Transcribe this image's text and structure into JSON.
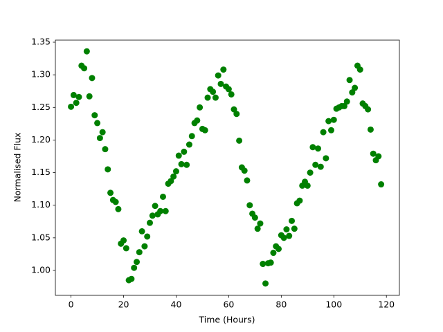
{
  "chart_data": {
    "type": "scatter",
    "xlabel": "Time (Hours)",
    "ylabel": "Normalised Flux",
    "x": [
      0,
      1,
      2,
      3,
      4,
      5,
      6,
      7,
      8,
      9,
      10,
      11,
      12,
      13,
      14,
      15,
      16,
      17,
      18,
      19,
      20,
      21,
      22,
      23,
      24,
      25,
      26,
      27,
      28,
      29,
      30,
      31,
      32,
      33,
      34,
      35,
      36,
      37,
      38,
      39,
      40,
      41,
      42,
      43,
      44,
      45,
      46,
      47,
      48,
      49,
      50,
      51,
      52,
      53,
      54,
      55,
      56,
      57,
      58,
      59,
      60,
      61,
      62,
      63,
      64,
      65,
      66,
      67,
      68,
      69,
      70,
      71,
      72,
      73,
      74,
      75,
      76,
      77,
      78,
      79,
      80,
      81,
      82,
      83,
      84,
      85,
      86,
      87,
      88,
      89,
      90,
      91,
      92,
      93,
      94,
      95,
      96,
      97,
      98,
      99,
      100,
      101,
      102,
      103,
      104,
      105,
      106,
      107,
      108,
      109,
      110,
      111,
      112,
      113,
      114,
      115,
      116,
      117,
      118
    ],
    "series": [
      {
        "color": "#008000",
        "values": [
          1.251,
          1.269,
          1.257,
          1.266,
          1.314,
          1.31,
          1.336,
          1.267,
          1.295,
          1.238,
          1.226,
          1.203,
          1.212,
          1.186,
          1.155,
          1.119,
          1.108,
          1.105,
          1.094,
          1.041,
          1.046,
          1.034,
          0.985,
          0.987,
          1.004,
          1.013,
          1.028,
          1.06,
          1.037,
          1.052,
          1.073,
          1.084,
          1.099,
          1.086,
          1.091,
          1.113,
          1.091,
          1.133,
          1.137,
          1.144,
          1.152,
          1.176,
          1.163,
          1.182,
          1.162,
          1.193,
          1.206,
          1.226,
          1.23,
          1.25,
          1.217,
          1.215,
          1.265,
          1.278,
          1.274,
          1.265,
          1.299,
          1.286,
          1.308,
          1.282,
          1.278,
          1.27,
          1.247,
          1.24,
          1.199,
          1.158,
          1.153,
          1.138,
          1.1,
          1.087,
          1.081,
          1.064,
          1.072,
          1.01,
          0.98,
          1.011,
          1.012,
          1.027,
          1.037,
          1.033,
          1.054,
          1.05,
          1.063,
          1.053,
          1.076,
          1.064,
          1.103,
          1.107,
          1.13,
          1.136,
          1.13,
          1.15,
          1.189,
          1.162,
          1.187,
          1.159,
          1.212,
          1.172,
          1.229,
          1.215,
          1.231,
          1.248,
          1.25,
          1.252,
          1.252,
          1.259,
          1.292,
          1.273,
          1.28,
          1.314,
          1.308,
          1.256,
          1.252,
          1.247,
          1.216,
          1.179,
          1.169,
          1.175,
          1.132
        ]
      }
    ],
    "xlim": [
      -5.95,
      124.95
    ],
    "xticks": [
      0,
      20,
      40,
      60,
      80,
      100,
      120
    ],
    "ylim": [
      0.9618,
      1.3532
    ],
    "yticks": [
      {
        "value": 1.0,
        "label": "1.00"
      },
      1.05,
      {
        "value": 1.1,
        "label": "1.10"
      },
      1.15,
      {
        "value": 1.2,
        "label": "1.20"
      },
      1.25,
      {
        "value": 1.3,
        "label": "1.30"
      },
      1.35
    ],
    "grid": false
  }
}
